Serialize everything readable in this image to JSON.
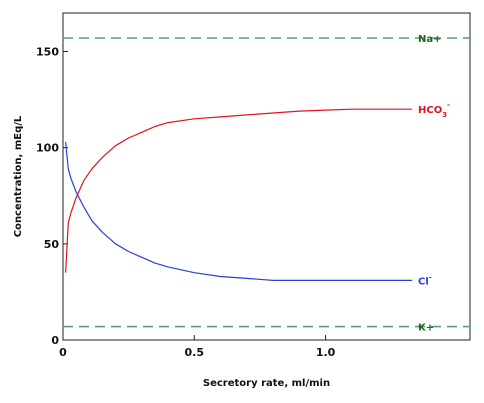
{
  "chart_data": {
    "type": "line",
    "xlabel": "Secretory rate, ml/min",
    "ylabel": "Concentration, mEq/L",
    "xlim": [
      0,
      1.55
    ],
    "ylim": [
      0,
      170
    ],
    "x_ticks": [
      {
        "value": 0,
        "label": "0"
      },
      {
        "value": 0.5,
        "label": "0.5"
      },
      {
        "value": 1.0,
        "label": "1.0"
      }
    ],
    "y_ticks": [
      {
        "value": 0,
        "label": "0"
      },
      {
        "value": 50,
        "label": "50"
      },
      {
        "value": 100,
        "label": "100"
      },
      {
        "value": 150,
        "label": "150"
      }
    ],
    "grid": false,
    "series": [
      {
        "name": "Na+",
        "color": "#5b9a86",
        "style": "dashed",
        "x": [
          0,
          1.55
        ],
        "y": [
          157,
          157
        ]
      },
      {
        "name": "HCO3-",
        "name_main": "HCO",
        "name_sub": "3",
        "name_sup": "-",
        "color": "#e0141c",
        "style": "solid",
        "x": [
          0.01,
          0.02,
          0.03,
          0.05,
          0.08,
          0.11,
          0.15,
          0.2,
          0.25,
          0.3,
          0.35,
          0.4,
          0.5,
          0.6,
          0.7,
          0.8,
          0.9,
          1.0,
          1.1,
          1.2,
          1.33
        ],
        "y": [
          35,
          61,
          66,
          74,
          83,
          89,
          95,
          101,
          105,
          108,
          111,
          113,
          115,
          116,
          117,
          118,
          119,
          119.5,
          120,
          120,
          120
        ]
      },
      {
        "name": "Cl",
        "name_main": "Cl",
        "name_sup": "-",
        "color": "#2b3fd6",
        "style": "solid",
        "x": [
          0.01,
          0.02,
          0.03,
          0.05,
          0.08,
          0.11,
          0.15,
          0.2,
          0.25,
          0.3,
          0.35,
          0.4,
          0.5,
          0.6,
          0.7,
          0.8,
          0.9,
          1.0,
          1.1,
          1.2,
          1.33
        ],
        "y": [
          103,
          89,
          84,
          77,
          69,
          62,
          56,
          50,
          46,
          43,
          40,
          38,
          35,
          33,
          32,
          31,
          31,
          31,
          31,
          31,
          31
        ]
      },
      {
        "name": "K+",
        "color": "#5b9a86",
        "style": "dashed",
        "x": [
          0,
          1.55
        ],
        "y": [
          7,
          7
        ]
      }
    ]
  }
}
